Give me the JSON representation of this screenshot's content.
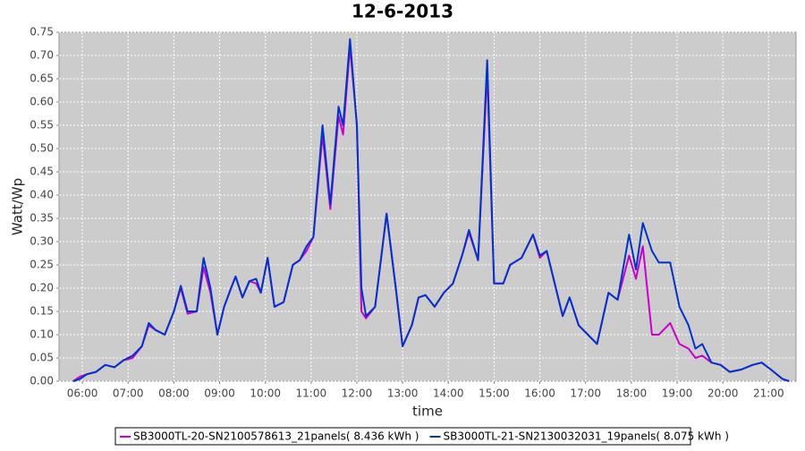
{
  "chart_data": {
    "type": "line",
    "title": "12-6-2013",
    "x_label": "time",
    "y_label": "Watt/Wp",
    "x": [
      5.8,
      5.95,
      6.1,
      6.3,
      6.5,
      6.7,
      6.9,
      7.1,
      7.3,
      7.45,
      7.6,
      7.8,
      8.0,
      8.15,
      8.3,
      8.5,
      8.65,
      8.8,
      8.95,
      9.1,
      9.25,
      9.35,
      9.5,
      9.65,
      9.8,
      9.9,
      10.05,
      10.2,
      10.4,
      10.6,
      10.75,
      10.9,
      11.05,
      11.25,
      11.42,
      11.6,
      11.7,
      11.85,
      12.0,
      12.1,
      12.2,
      12.4,
      12.65,
      12.85,
      13.0,
      13.2,
      13.35,
      13.5,
      13.7,
      13.9,
      14.1,
      14.3,
      14.45,
      14.65,
      14.85,
      15.0,
      15.2,
      15.35,
      15.6,
      15.85,
      16.0,
      16.15,
      16.3,
      16.5,
      16.65,
      16.85,
      17.05,
      17.25,
      17.5,
      17.7,
      17.95,
      18.1,
      18.25,
      18.45,
      18.6,
      18.85,
      19.05,
      19.25,
      19.4,
      19.55,
      19.75,
      19.95,
      20.15,
      20.4,
      20.65,
      20.85,
      21.05,
      21.3,
      21.45
    ],
    "series": [
      {
        "name": "SB3000TL-20-SN2100578613_21panels( 8.436 kWh )",
        "color": "#cc00cc",
        "values": [
          0.0,
          0.01,
          0.015,
          0.02,
          0.035,
          0.03,
          0.045,
          0.05,
          0.075,
          0.12,
          0.11,
          0.1,
          0.15,
          0.2,
          0.145,
          0.15,
          0.245,
          0.19,
          0.1,
          0.16,
          0.2,
          0.225,
          0.18,
          0.215,
          0.21,
          0.19,
          0.265,
          0.16,
          0.17,
          0.25,
          0.26,
          0.28,
          0.31,
          0.53,
          0.37,
          0.57,
          0.53,
          0.72,
          0.55,
          0.15,
          0.135,
          0.16,
          0.36,
          0.2,
          0.075,
          0.12,
          0.18,
          0.185,
          0.16,
          0.19,
          0.21,
          0.27,
          0.32,
          0.26,
          0.665,
          0.21,
          0.21,
          0.25,
          0.265,
          0.315,
          0.265,
          0.28,
          0.22,
          0.14,
          0.18,
          0.12,
          0.1,
          0.08,
          0.19,
          0.175,
          0.27,
          0.22,
          0.29,
          0.1,
          0.1,
          0.125,
          0.08,
          0.07,
          0.05,
          0.055,
          0.04,
          0.035,
          0.02,
          0.025,
          0.035,
          0.04,
          0.025,
          0.005,
          0.0
        ]
      },
      {
        "name": "SB3000TL-21-SN2130032031_19panels( 8.075 kWh )",
        "color": "#0033cc",
        "values": [
          0.0,
          0.005,
          0.015,
          0.02,
          0.035,
          0.03,
          0.045,
          0.055,
          0.075,
          0.125,
          0.11,
          0.1,
          0.15,
          0.205,
          0.15,
          0.15,
          0.265,
          0.2,
          0.1,
          0.16,
          0.2,
          0.225,
          0.18,
          0.215,
          0.22,
          0.19,
          0.265,
          0.16,
          0.17,
          0.25,
          0.26,
          0.29,
          0.31,
          0.55,
          0.38,
          0.59,
          0.55,
          0.735,
          0.55,
          0.2,
          0.14,
          0.16,
          0.36,
          0.2,
          0.075,
          0.12,
          0.18,
          0.185,
          0.16,
          0.19,
          0.21,
          0.27,
          0.325,
          0.26,
          0.69,
          0.21,
          0.21,
          0.25,
          0.265,
          0.315,
          0.27,
          0.28,
          0.22,
          0.14,
          0.18,
          0.12,
          0.1,
          0.08,
          0.19,
          0.175,
          0.315,
          0.24,
          0.34,
          0.28,
          0.255,
          0.255,
          0.16,
          0.12,
          0.07,
          0.08,
          0.04,
          0.035,
          0.02,
          0.025,
          0.035,
          0.04,
          0.025,
          0.005,
          0.0
        ]
      }
    ],
    "xlim": [
      5.49,
      21.6
    ],
    "xticks": [
      {
        "value": 6,
        "label": "06:00"
      },
      {
        "value": 7,
        "label": "07:00"
      },
      {
        "value": 8,
        "label": "08:00"
      },
      {
        "value": 9,
        "label": "09:00"
      },
      {
        "value": 10,
        "label": "10:00"
      },
      {
        "value": 11,
        "label": "11:00"
      },
      {
        "value": 12,
        "label": "12:00"
      },
      {
        "value": 13,
        "label": "13:00"
      },
      {
        "value": 14,
        "label": "14:00"
      },
      {
        "value": 15,
        "label": "15:00"
      },
      {
        "value": 16,
        "label": "16:00"
      },
      {
        "value": 17,
        "label": "17:00"
      },
      {
        "value": 18,
        "label": "18:00"
      },
      {
        "value": 19,
        "label": "19:00"
      },
      {
        "value": 20,
        "label": "20:00"
      },
      {
        "value": 21,
        "label": "21:00"
      }
    ],
    "ylim": [
      0,
      0.75
    ],
    "yticks": [
      {
        "value": 0,
        "label": "0.00"
      },
      {
        "value": 0.05,
        "label": "0.05"
      },
      {
        "value": 0.1,
        "label": "0.10"
      },
      {
        "value": 0.15,
        "label": "0.15"
      },
      {
        "value": 0.2,
        "label": "0.20"
      },
      {
        "value": 0.25,
        "label": "0.25"
      },
      {
        "value": 0.3,
        "label": "0.30"
      },
      {
        "value": 0.35,
        "label": "0.35"
      },
      {
        "value": 0.4,
        "label": "0.40"
      },
      {
        "value": 0.45,
        "label": "0.45"
      },
      {
        "value": 0.5,
        "label": "0.50"
      },
      {
        "value": 0.55,
        "label": "0.55"
      },
      {
        "value": 0.6,
        "label": "0.60"
      },
      {
        "value": 0.65,
        "label": "0.65"
      },
      {
        "value": 0.7,
        "label": "0.70"
      },
      {
        "value": 0.75,
        "label": "0.75"
      }
    ],
    "grid": true,
    "legend": "bottom"
  }
}
